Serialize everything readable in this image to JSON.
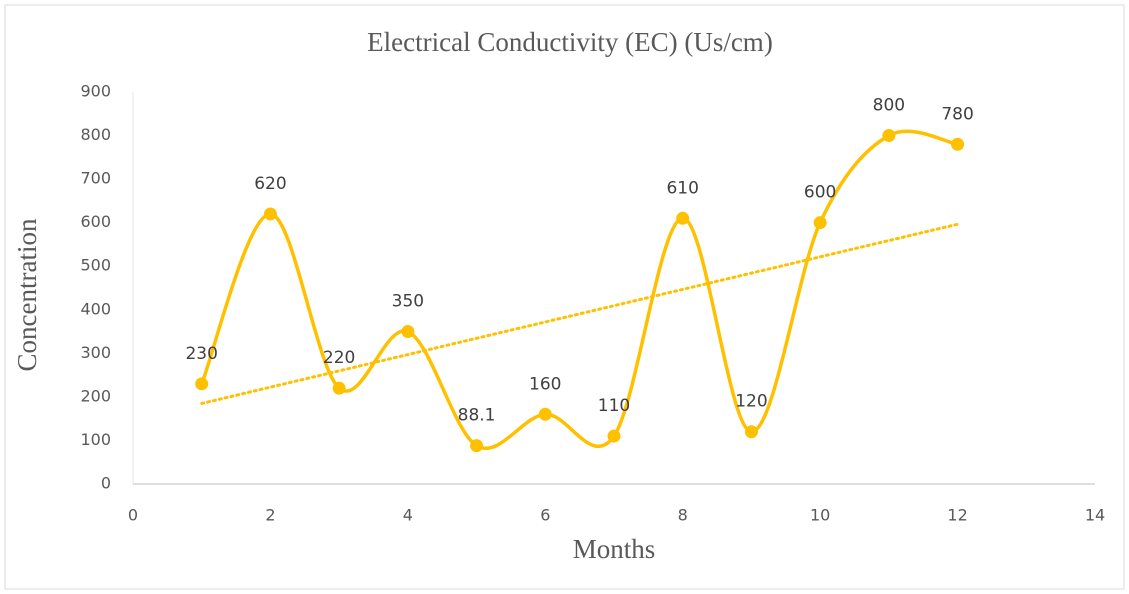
{
  "chart_data": {
    "type": "line",
    "title": "Electrical Conductivity (EC) (Us/cm)",
    "x_label": "Months",
    "y_label": "Concentration",
    "x": [
      1,
      2,
      3,
      4,
      5,
      6,
      7,
      8,
      9,
      10,
      11,
      12
    ],
    "series": [
      {
        "name": "EC",
        "color": "#FFC000",
        "values": [
          230,
          620,
          220,
          350,
          88.1,
          160,
          110,
          610,
          120,
          600,
          800,
          780
        ]
      }
    ],
    "smooth": true,
    "data_labels": true,
    "trendline": "linear",
    "xlim": [
      0,
      14
    ],
    "xticks": [
      0,
      2,
      4,
      6,
      8,
      10,
      12,
      14
    ],
    "ylim": [
      0,
      900
    ],
    "yticks": [
      0,
      100,
      200,
      300,
      400,
      500,
      600,
      700,
      800,
      900
    ],
    "grid": false
  }
}
